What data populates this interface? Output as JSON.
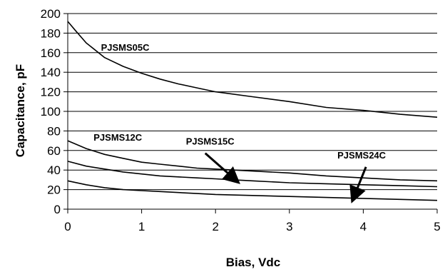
{
  "chart_data": {
    "type": "line",
    "title": "",
    "xlabel": "Bias, Vdc",
    "ylabel": "Capacitance, pF",
    "xlim": [
      0,
      5
    ],
    "ylim": [
      0,
      200
    ],
    "xticks": [
      0,
      1,
      2,
      3,
      4,
      5
    ],
    "yticks": [
      0,
      20,
      40,
      60,
      80,
      100,
      120,
      140,
      160,
      180,
      200
    ],
    "grid": "horizontal",
    "legend": "none",
    "line_color": "#000000",
    "series": [
      {
        "name": "PJSMS05C",
        "x": [
          0,
          0.1,
          0.25,
          0.5,
          0.75,
          1,
          1.25,
          1.5,
          1.75,
          2,
          2.5,
          3,
          3.5,
          4,
          4.5,
          5
        ],
        "y": [
          192,
          183,
          170,
          155,
          146,
          139,
          133,
          128,
          124,
          120,
          115,
          110,
          104,
          101,
          97,
          94
        ]
      },
      {
        "name": "PJSMS12C",
        "x": [
          0,
          0.25,
          0.5,
          0.75,
          1,
          1.25,
          1.5,
          1.75,
          2,
          2.25,
          2.5,
          3,
          3.5,
          4,
          4.5,
          5
        ],
        "y": [
          70,
          62,
          56,
          52,
          48,
          46,
          44,
          42,
          41,
          40,
          39,
          37,
          34,
          32,
          30,
          29
        ]
      },
      {
        "name": "PJSMS15C",
        "x": [
          0,
          0.25,
          0.5,
          0.75,
          1,
          1.25,
          1.5,
          1.75,
          2,
          2.25,
          2.5,
          3,
          3.5,
          4,
          4.5,
          5
        ],
        "y": [
          49,
          44,
          41,
          38,
          36,
          34,
          33,
          32,
          31,
          30,
          29,
          27,
          26,
          25,
          24,
          23
        ]
      },
      {
        "name": "PJSMS24C",
        "x": [
          0,
          0.25,
          0.5,
          0.75,
          1,
          1.25,
          1.5,
          1.75,
          2,
          2.5,
          3,
          3.5,
          4,
          4.5,
          5
        ],
        "y": [
          29,
          25,
          22,
          20,
          19,
          18,
          17,
          16,
          15,
          14,
          13,
          12,
          11,
          10,
          9
        ]
      }
    ],
    "annotations": [
      {
        "text": "PJSMS05C",
        "x": 0.45,
        "y": 162
      },
      {
        "text": "PJSMS12C",
        "x": 0.35,
        "y": 70
      },
      {
        "text": "PJSMS15C",
        "x": 1.6,
        "y": 66,
        "arrow_to": [
          2.27,
          30
        ]
      },
      {
        "text": "PJSMS24C",
        "x": 3.65,
        "y": 52,
        "arrow_to": [
          3.87,
          12
        ]
      }
    ]
  }
}
